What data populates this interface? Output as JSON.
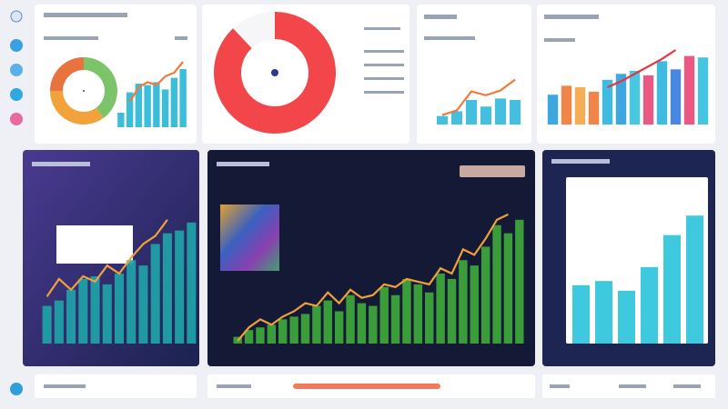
{
  "chart_data": [
    {
      "type": "pie",
      "values": [
        40,
        35,
        25
      ],
      "colors": [
        "#7cc36a",
        "#f2a23a",
        "#e8733e"
      ]
    },
    {
      "type": "bar",
      "ylim": [
        0,
        100
      ],
      "series": [
        {
          "type": "bar",
          "color": "#2bb8d8",
          "values": [
            20,
            48,
            60,
            58,
            62,
            52,
            68,
            80
          ]
        },
        {
          "type": "line",
          "color": "#f07a3a",
          "values": [
            null,
            35,
            55,
            62,
            58,
            70,
            75,
            90
          ]
        }
      ]
    },
    {
      "type": "pie",
      "values": [
        88,
        12
      ],
      "colors": [
        "#f2464a",
        "#f6f6f8"
      ]
    },
    {
      "type": "bar",
      "ylim": [
        0,
        100
      ],
      "series": [
        {
          "type": "bar",
          "color": "#35b8dd",
          "values": [
            18,
            28,
            52,
            38,
            55,
            52
          ]
        },
        {
          "type": "line",
          "color": "#f07a3a",
          "values": [
            20,
            30,
            70,
            62,
            72,
            95
          ]
        }
      ]
    },
    {
      "type": "bar",
      "ylim": [
        0,
        100
      ],
      "series": [
        {
          "type": "bar",
          "colors": [
            "#2f9fdc",
            "#f07a3a",
            "#f5a64a",
            "#f07a3a",
            "#2fb5dd",
            "#2f9fdc",
            "#36c3df",
            "#e84a7a",
            "#2fb5dd",
            "#3a7ee0",
            "#e84a7a",
            "#35c0e0"
          ],
          "values": [
            40,
            52,
            50,
            44,
            60,
            68,
            72,
            66,
            85,
            74,
            92,
            90
          ]
        },
        {
          "type": "line",
          "color": "#e8343a",
          "values": [
            null,
            null,
            null,
            null,
            50,
            58,
            68,
            78,
            88,
            100,
            null,
            null
          ]
        }
      ]
    },
    {
      "type": "bar",
      "ylim": [
        0,
        100
      ],
      "series": [
        {
          "type": "bar",
          "color": "#1fa3a8",
          "values": [
            28,
            32,
            40,
            48,
            50,
            44,
            52,
            62,
            58,
            74,
            82,
            84,
            90
          ]
        },
        {
          "type": "line",
          "color": "#f0a03a",
          "values": [
            35,
            48,
            40,
            50,
            46,
            58,
            52,
            64,
            74,
            80,
            92,
            null,
            null
          ]
        }
      ]
    },
    {
      "type": "bar",
      "ylim": [
        0,
        100
      ],
      "series": [
        {
          "type": "bar",
          "color": "#3fa83a",
          "values": [
            5,
            10,
            12,
            14,
            18,
            20,
            22,
            28,
            32,
            24,
            36,
            30,
            28,
            42,
            36,
            48,
            44,
            38,
            52,
            48,
            62,
            58,
            72,
            88,
            82,
            92
          ]
        },
        {
          "type": "line",
          "color": "#f0a03a",
          "values": [
            2,
            12,
            18,
            14,
            20,
            24,
            30,
            28,
            38,
            30,
            40,
            34,
            36,
            44,
            42,
            48,
            46,
            44,
            56,
            52,
            70,
            66,
            78,
            92,
            96,
            null
          ]
        }
      ]
    },
    {
      "type": "bar",
      "ylim": [
        0,
        100
      ],
      "series": [
        {
          "type": "bar",
          "color": "#2ec4dc",
          "values": [
            42,
            45,
            38,
            55,
            78,
            92
          ]
        }
      ]
    }
  ]
}
